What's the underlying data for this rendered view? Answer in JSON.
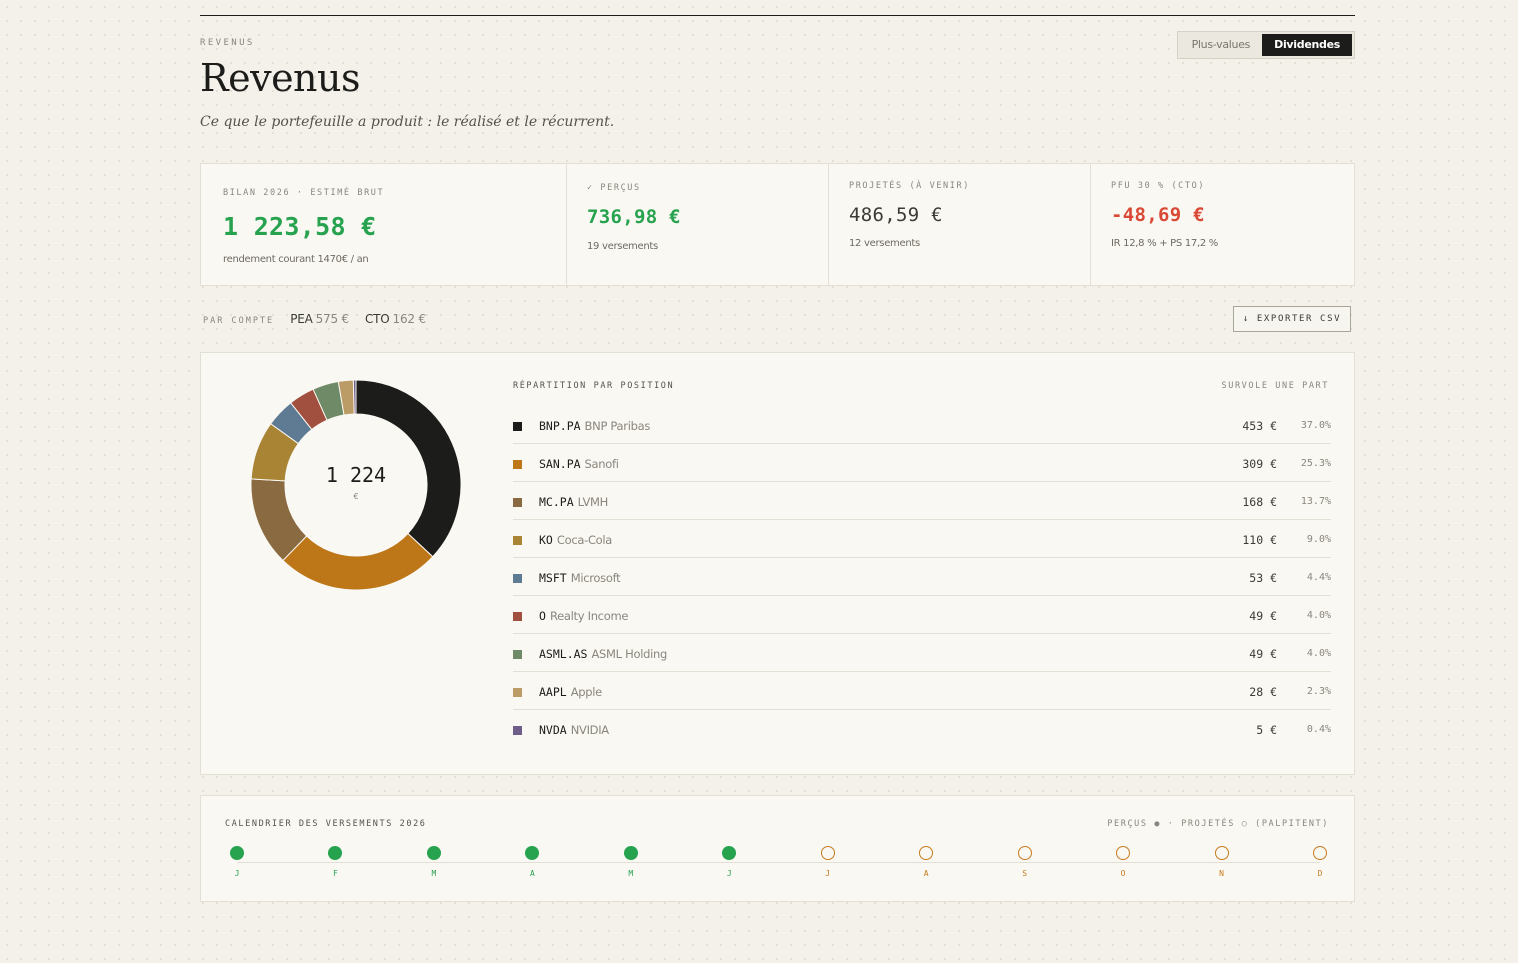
{
  "header": {
    "eyebrow": "REVENUS",
    "title": "Revenus",
    "subtitle": "Ce que le portefeuille a produit : le réalisé et le récurrent.",
    "toggle": [
      {
        "label": "Plus-values",
        "active": false
      },
      {
        "label": "Dividendes",
        "active": true
      }
    ]
  },
  "stats": [
    {
      "label": "BILAN 2026 · ESTIMÉ BRUT",
      "value": "1 223,58 €",
      "sub": "rendement courant 1470€ / an",
      "tone": "green"
    },
    {
      "label": "✓ PERÇUS",
      "value": "736,98 €",
      "sub": "19 versements",
      "tone": "green"
    },
    {
      "label": "PROJETÉS (À VENIR)",
      "value": "486,59 €",
      "sub": "12 versements",
      "tone": "dark"
    },
    {
      "label": "PFU 30 % (CTO)",
      "value": "-48,69 €",
      "sub": "IR 12,8 % + PS 17,2 %",
      "tone": "red"
    }
  ],
  "by_account": {
    "label": "PAR COMPTE",
    "accounts": [
      {
        "name": "PEA",
        "amount": "575 €"
      },
      {
        "name": "CTO",
        "amount": "162 €"
      }
    ]
  },
  "export_label": "↓ EXPORTER CSV",
  "repartition": {
    "title": "RÉPARTITION PAR POSITION",
    "hint": "SURVOLE UNE PART",
    "total": "1 224",
    "unit": "€",
    "positions": [
      {
        "ticker": "BNP.PA",
        "name": "BNP Paribas",
        "amount": "453 €",
        "pct": "37.0%",
        "value": 37.0,
        "color": "#1c1c1a"
      },
      {
        "ticker": "SAN.PA",
        "name": "Sanofi",
        "amount": "309 €",
        "pct": "25.3%",
        "value": 25.3,
        "color": "#bd7618"
      },
      {
        "ticker": "MC.PA",
        "name": "LVMH",
        "amount": "168 €",
        "pct": "13.7%",
        "value": 13.7,
        "color": "#8a6a40"
      },
      {
        "ticker": "KO",
        "name": "Coca-Cola",
        "amount": "110 €",
        "pct": "9.0%",
        "value": 9.0,
        "color": "#a88434"
      },
      {
        "ticker": "MSFT",
        "name": "Microsoft",
        "amount": "53 €",
        "pct": "4.4%",
        "value": 4.4,
        "color": "#5f7a93"
      },
      {
        "ticker": "O",
        "name": "Realty Income",
        "amount": "49 €",
        "pct": "4.0%",
        "value": 4.0,
        "color": "#a14f3e"
      },
      {
        "ticker": "ASML.AS",
        "name": "ASML Holding",
        "amount": "49 €",
        "pct": "4.0%",
        "value": 4.0,
        "color": "#6f8a66"
      },
      {
        "ticker": "AAPL",
        "name": "Apple",
        "amount": "28 €",
        "pct": "2.3%",
        "value": 2.3,
        "color": "#bb9c67"
      },
      {
        "ticker": "NVDA",
        "name": "NVIDIA",
        "amount": "5 €",
        "pct": "0.4%",
        "value": 0.4,
        "color": "#6f5d8a"
      }
    ]
  },
  "calendar": {
    "title": "CALENDRIER DES VERSEMENTS 2026",
    "legend": "PERÇUS ● · PROJETÉS ○ (PALPITENT)",
    "months": [
      {
        "label": "J",
        "status": "paid"
      },
      {
        "label": "F",
        "status": "paid"
      },
      {
        "label": "M",
        "status": "paid"
      },
      {
        "label": "A",
        "status": "paid"
      },
      {
        "label": "M",
        "status": "paid"
      },
      {
        "label": "J",
        "status": "paid"
      },
      {
        "label": "J",
        "status": "proj"
      },
      {
        "label": "A",
        "status": "proj"
      },
      {
        "label": "S",
        "status": "proj"
      },
      {
        "label": "O",
        "status": "proj"
      },
      {
        "label": "N",
        "status": "proj"
      },
      {
        "label": "D",
        "status": "proj"
      }
    ]
  }
}
